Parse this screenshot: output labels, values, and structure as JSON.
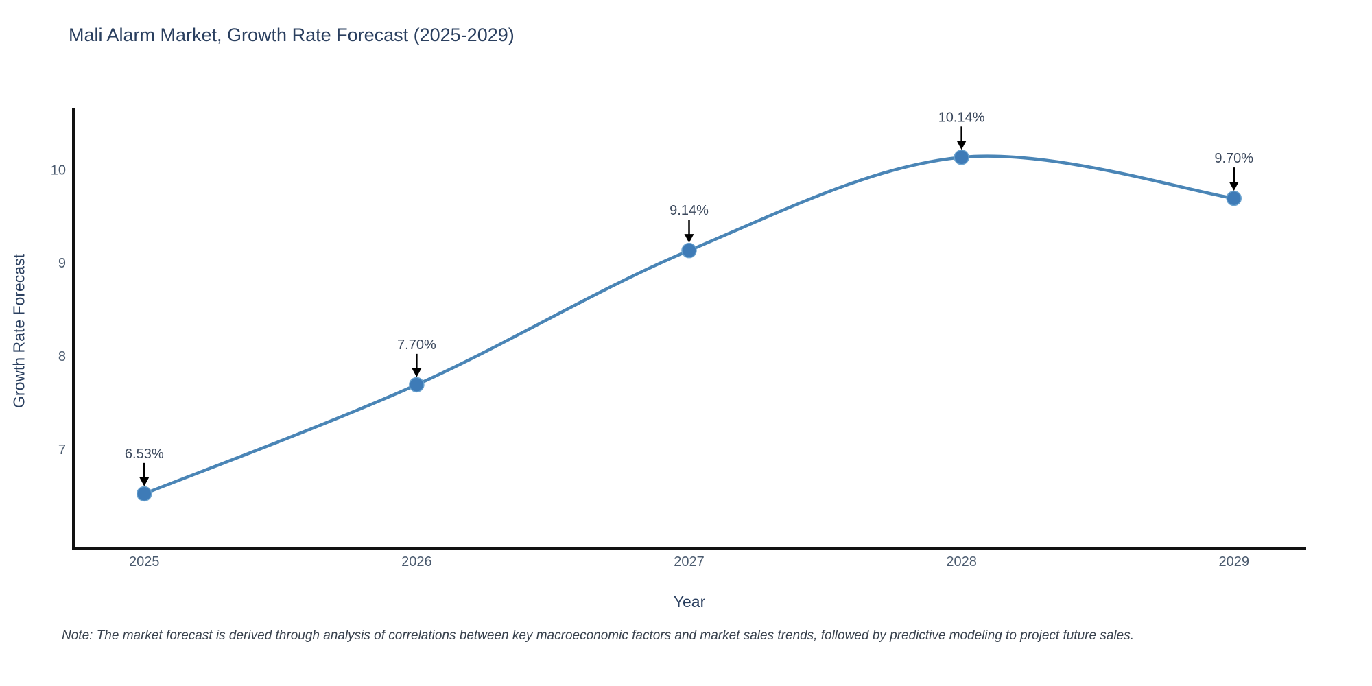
{
  "title": "Mali Alarm Market, Growth Rate Forecast (2025-2029)",
  "note": "Note: The market forecast is derived through analysis of correlations between key macroeconomic factors and market sales trends, followed by predictive modeling to project future sales.",
  "chart_data": {
    "type": "line",
    "title": "Mali Alarm Market, Growth Rate Forecast (2025-2029)",
    "xlabel": "Year",
    "ylabel": "Growth Rate Forecast",
    "categories": [
      "2025",
      "2026",
      "2027",
      "2028",
      "2029"
    ],
    "x": [
      2025,
      2026,
      2027,
      2028,
      2029
    ],
    "values": [
      6.53,
      7.7,
      9.14,
      10.14,
      9.7
    ],
    "point_labels": [
      "6.53%",
      "7.70%",
      "9.14%",
      "10.14%",
      "9.70%"
    ],
    "yticks": [
      7,
      8,
      9,
      10
    ],
    "ylim": [
      5.94,
      10.65
    ],
    "xlim": [
      2024.74,
      2029.26
    ],
    "grid": false,
    "legend": "none",
    "line_shape": "spline",
    "colors": {
      "line": "#4a85b6",
      "marker_fill": "#3e7bb7",
      "marker_edge": "#6ba3cf",
      "axis_line": "#111111",
      "arrow": "#000000",
      "title_text": "#2a3f5f",
      "tick_text": "#4a5a6e",
      "label_text": "#3b485c"
    }
  }
}
